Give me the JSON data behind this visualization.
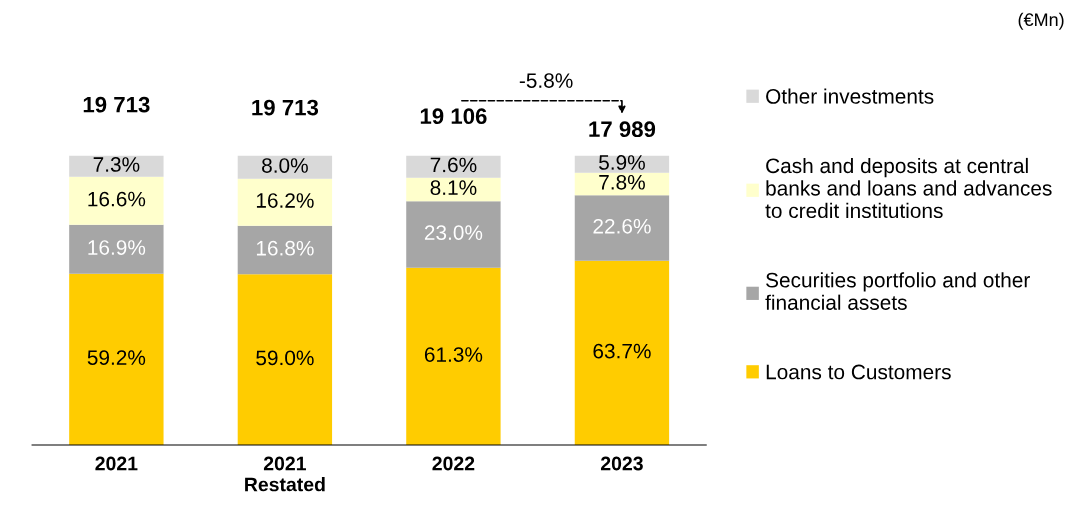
{
  "chart_data": {
    "type": "bar",
    "stacked": true,
    "legend": "right",
    "categories": [
      "2021",
      "2021\nRestated",
      "2022",
      "2023"
    ],
    "series": [
      {
        "name": "Loans to Customers",
        "color": "#ffcc00",
        "values": [
          59.2,
          59.0,
          61.3,
          63.7
        ],
        "value_labels": [
          "59.2%",
          "59.0%",
          "61.3%",
          "63.7%"
        ]
      },
      {
        "name": "Securities portfolio and other financial assets",
        "color": "#a6a6a6",
        "values": [
          16.9,
          16.8,
          23.0,
          22.6
        ],
        "value_labels": [
          "16.9%",
          "16.8%",
          "23.0%",
          "22.6%"
        ]
      },
      {
        "name": "Cash and deposits at central banks and loans and advances to credit institutions",
        "color": "#ffffcc",
        "values": [
          16.6,
          16.2,
          8.1,
          7.8
        ],
        "value_labels": [
          "16.6%",
          "16.2%",
          "8.1%",
          "7.8%"
        ]
      },
      {
        "name": "Other investments",
        "color": "#d9d9d9",
        "values": [
          7.3,
          8.0,
          7.6,
          5.9
        ],
        "value_labels": [
          "7.3%",
          "8.0%",
          "7.6%",
          "5.9%"
        ]
      }
    ],
    "annotations": [
      {
        "text": "19 713",
        "x": "2021",
        "y": 100
      },
      {
        "text": "19 713",
        "x": "2021\nRestated",
        "y": 100
      },
      {
        "text": "19 106",
        "x": "2022",
        "y": 100
      },
      {
        "text": "17 989",
        "x": "2023",
        "y": 100
      },
      "-5.8%",
      "(€Mn)"
    ]
  }
}
